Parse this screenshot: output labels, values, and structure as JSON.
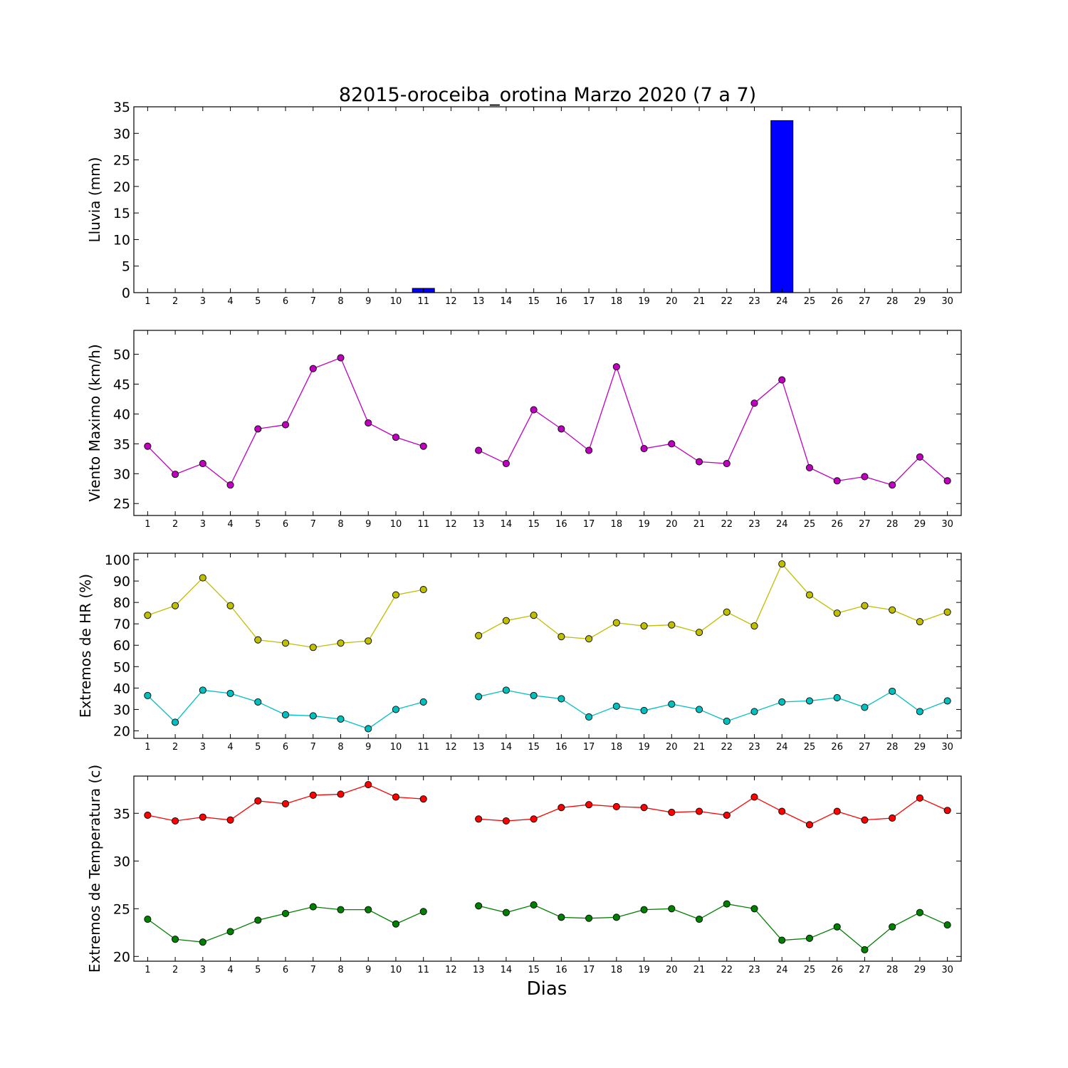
{
  "chart_data": [
    {
      "type": "bar",
      "title": "82015-oroceiba_orotina Marzo 2020  (7 a 7)",
      "xlabel": "",
      "ylabel": "Lluvia (mm)",
      "categories": [
        1,
        2,
        3,
        4,
        5,
        6,
        7,
        8,
        9,
        10,
        11,
        12,
        13,
        14,
        15,
        16,
        17,
        18,
        19,
        20,
        21,
        22,
        23,
        24,
        25,
        26,
        27,
        28,
        29,
        30
      ],
      "values": [
        0,
        0,
        0,
        0,
        0,
        0,
        0,
        0,
        0,
        0,
        0.8,
        0,
        0,
        0,
        0,
        0,
        0,
        0,
        0,
        0,
        0,
        0,
        0,
        32.4,
        0,
        0,
        0,
        0,
        0,
        0
      ],
      "ylim": [
        0,
        35
      ],
      "yticks": [
        0,
        5,
        10,
        15,
        20,
        25,
        30,
        35
      ],
      "colors": {
        "bar": "#0000ff"
      }
    },
    {
      "type": "line",
      "ylabel": "Viento Maximo (km/h)",
      "x": [
        1,
        2,
        3,
        4,
        5,
        6,
        7,
        8,
        9,
        10,
        11,
        12,
        13,
        14,
        15,
        16,
        17,
        18,
        19,
        20,
        21,
        22,
        23,
        24,
        25,
        26,
        27,
        28,
        29,
        30
      ],
      "series": [
        {
          "values": [
            34.6,
            29.9,
            31.7,
            28.1,
            37.5,
            38.2,
            47.6,
            49.4,
            38.5,
            36.1,
            34.6,
            null,
            33.9,
            31.7,
            40.7,
            37.5,
            33.9,
            47.9,
            34.2,
            35.0,
            32.0,
            31.7,
            41.8,
            45.7,
            31.0,
            28.8,
            29.5,
            28.1,
            32.8,
            28.8
          ],
          "color": "#bf00bf"
        }
      ],
      "ylim": [
        23,
        54
      ],
      "yticks": [
        25,
        30,
        35,
        40,
        45,
        50
      ]
    },
    {
      "type": "line",
      "ylabel": "Extremos de HR (%)",
      "x": [
        1,
        2,
        3,
        4,
        5,
        6,
        7,
        8,
        9,
        10,
        11,
        12,
        13,
        14,
        15,
        16,
        17,
        18,
        19,
        20,
        21,
        22,
        23,
        24,
        25,
        26,
        27,
        28,
        29,
        30
      ],
      "series": [
        {
          "values": [
            74,
            78.5,
            91.5,
            78.5,
            62.5,
            61,
            59,
            61,
            62,
            83.5,
            86,
            null,
            64.5,
            71.5,
            74,
            64,
            63,
            70.5,
            69,
            69.5,
            66,
            75.5,
            69,
            98,
            83.5,
            75,
            78.5,
            76.5,
            71,
            75.5
          ],
          "color": "#bfbf00"
        },
        {
          "values": [
            36.5,
            24,
            39,
            37.5,
            33.5,
            27.5,
            27,
            25.5,
            21,
            30,
            33.5,
            null,
            36,
            39,
            36.5,
            35,
            26.5,
            31.5,
            29.5,
            32.5,
            30,
            24.5,
            29,
            33.5,
            34,
            35.5,
            31,
            38.5,
            29,
            34
          ],
          "color": "#00bfbf"
        }
      ],
      "ylim": [
        16.5,
        103
      ],
      "yticks": [
        20,
        30,
        40,
        50,
        60,
        70,
        80,
        90,
        100
      ]
    },
    {
      "type": "line",
      "ylabel": "Extremos de Temperatura (c)",
      "xlabel": "Dias",
      "x": [
        1,
        2,
        3,
        4,
        5,
        6,
        7,
        8,
        9,
        10,
        11,
        12,
        13,
        14,
        15,
        16,
        17,
        18,
        19,
        20,
        21,
        22,
        23,
        24,
        25,
        26,
        27,
        28,
        29,
        30
      ],
      "series": [
        {
          "values": [
            34.8,
            34.2,
            34.6,
            34.3,
            36.3,
            36.0,
            36.9,
            37.0,
            38.0,
            36.7,
            36.5,
            null,
            34.4,
            34.2,
            34.4,
            35.6,
            35.9,
            35.7,
            35.6,
            35.1,
            35.2,
            34.8,
            36.7,
            35.2,
            33.8,
            35.2,
            34.3,
            34.5,
            36.6,
            35.3
          ],
          "color": "#ff0000"
        },
        {
          "values": [
            23.9,
            21.8,
            21.5,
            22.6,
            23.8,
            24.5,
            25.2,
            24.9,
            24.9,
            23.4,
            24.7,
            null,
            25.3,
            24.6,
            25.4,
            24.1,
            24.0,
            24.1,
            24.9,
            25.0,
            23.9,
            25.5,
            25.0,
            21.7,
            21.9,
            23.1,
            20.7,
            23.1,
            24.6,
            23.3
          ],
          "color": "#008000"
        }
      ],
      "ylim": [
        19.5,
        38.9
      ],
      "yticks": [
        20,
        25,
        30,
        35
      ]
    }
  ]
}
